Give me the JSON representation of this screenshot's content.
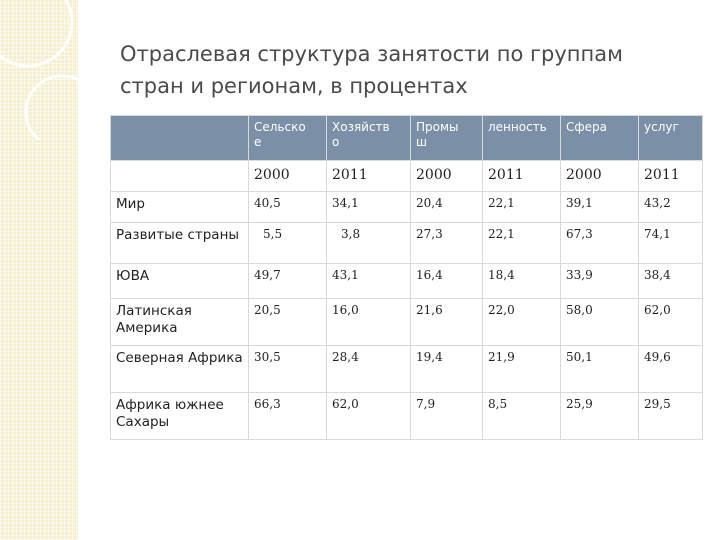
{
  "title": {
    "line1": "Отраслевая структура занятости по группам",
    "line2": "стран и регионам, в процентах"
  },
  "table": {
    "header": [
      "Сельско\nе",
      "Хозяйств\nо",
      "Промы\nш",
      "ленность",
      "Сфера",
      "услуг"
    ],
    "years": [
      "2000",
      "2011",
      "2000",
      "2011",
      "2000",
      "2011"
    ],
    "rows": [
      {
        "label": "Мир",
        "values": [
          "40,5",
          "34,1",
          "20,4",
          "22,1",
          "39,1",
          "43,2"
        ]
      },
      {
        "label": "Развитые страны",
        "values": [
          "5,5",
          "3,8",
          "27,3",
          "22,1",
          "67,3",
          "74,1"
        ]
      },
      {
        "label": "ЮВА",
        "values": [
          "49,7",
          "43,1",
          "16,4",
          "18,4",
          "33,9",
          "38,4"
        ]
      },
      {
        "label": "Латинская Америка",
        "values": [
          "20,5",
          "16,0",
          "21,6",
          "22,0",
          "58,0",
          "62,0"
        ]
      },
      {
        "label": "Северная Африка",
        "values": [
          "30,5",
          "28,4",
          "19,4",
          "21,9",
          "50,1",
          "49,6"
        ]
      },
      {
        "label": "Африка южнее Сахары",
        "values": [
          "66,3",
          "62,0",
          "7,9",
          "8,5",
          "25,9",
          "29,5"
        ]
      }
    ]
  },
  "colors": {
    "header_bg": "#7b90a6",
    "left_band": "#f3efcf",
    "title_text": "#4a4a4a"
  }
}
